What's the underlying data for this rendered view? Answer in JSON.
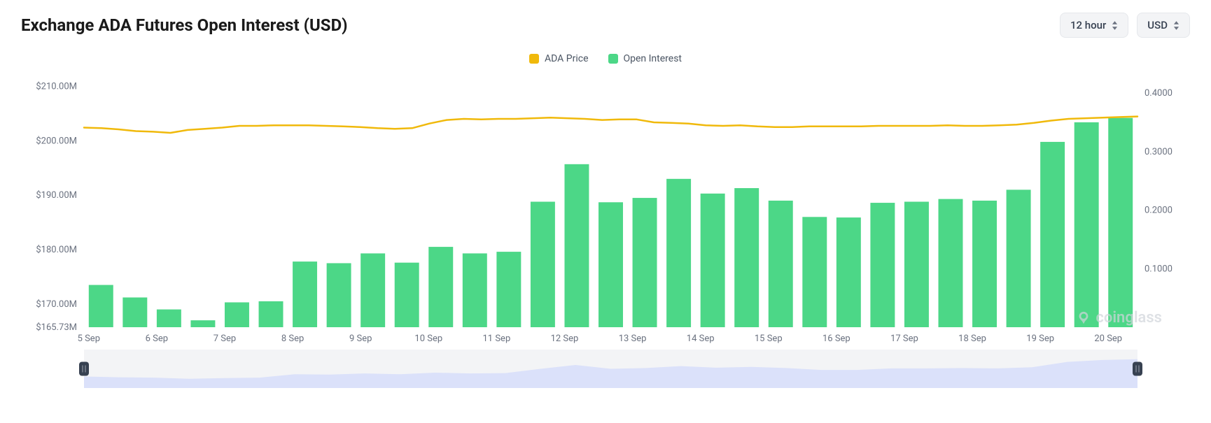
{
  "header": {
    "title": "Exchange ADA Futures Open Interest (USD)",
    "timeframe_label": "12 hour",
    "currency_label": "USD"
  },
  "legend": {
    "price_label": "ADA Price",
    "price_color": "#f0b90b",
    "oi_label": "Open Interest",
    "oi_color": "#4cd787"
  },
  "watermark": "coinglass",
  "chart": {
    "type": "bar+line",
    "background_color": "#ffffff",
    "bar_color": "#4cd787",
    "line_color": "#f0b90b",
    "line_width": 2.5,
    "bar_width_ratio": 0.72,
    "left_axis": {
      "label_fontsize": 13,
      "label_color": "#6b7280",
      "ticks": [
        {
          "value": 165.73,
          "label": "$165.73M"
        },
        {
          "value": 170.0,
          "label": "$170.00M"
        },
        {
          "value": 180.0,
          "label": "$180.00M"
        },
        {
          "value": 190.0,
          "label": "$190.00M"
        },
        {
          "value": 200.0,
          "label": "$200.00M"
        },
        {
          "value": 210.0,
          "label": "$210.00M"
        }
      ],
      "min": 165.73,
      "max": 212.0
    },
    "right_axis": {
      "label_fontsize": 13,
      "label_color": "#6b7280",
      "ticks": [
        {
          "value": 0.1,
          "label": "0.1000"
        },
        {
          "value": 0.2,
          "label": "0.2000"
        },
        {
          "value": 0.3,
          "label": "0.3000"
        },
        {
          "value": 0.4,
          "label": "0.4000"
        }
      ],
      "min": 0.0,
      "max": 0.43
    },
    "x_labels": [
      "5 Sep",
      "6 Sep",
      "7 Sep",
      "8 Sep",
      "9 Sep",
      "10 Sep",
      "11 Sep",
      "12 Sep",
      "13 Sep",
      "14 Sep",
      "15 Sep",
      "16 Sep",
      "17 Sep",
      "18 Sep",
      "19 Sep",
      "20 Sep"
    ],
    "bars_oi": [
      173.5,
      171.2,
      169.0,
      167.0,
      170.3,
      170.5,
      177.8,
      177.5,
      179.3,
      177.6,
      180.5,
      179.3,
      179.6,
      188.8,
      195.7,
      188.7,
      189.5,
      193.0,
      190.3,
      191.3,
      189.0,
      186.0,
      185.9,
      188.6,
      188.8,
      189.3,
      189.0,
      191.0,
      199.8,
      203.4,
      204.2
    ],
    "line_price": [
      0.341,
      0.34,
      0.338,
      0.335,
      0.334,
      0.332,
      0.337,
      0.339,
      0.341,
      0.344,
      0.344,
      0.345,
      0.345,
      0.345,
      0.344,
      0.343,
      0.342,
      0.34,
      0.339,
      0.34,
      0.348,
      0.354,
      0.356,
      0.355,
      0.356,
      0.356,
      0.357,
      0.358,
      0.357,
      0.356,
      0.354,
      0.355,
      0.355,
      0.35,
      0.349,
      0.348,
      0.345,
      0.344,
      0.345,
      0.343,
      0.342,
      0.342,
      0.343,
      0.343,
      0.343,
      0.343,
      0.344,
      0.344,
      0.344,
      0.344,
      0.345,
      0.344,
      0.344,
      0.345,
      0.346,
      0.349,
      0.353,
      0.356,
      0.357,
      0.358,
      0.359,
      0.36
    ]
  },
  "navigator": {
    "area_color": "#c7d2fe",
    "area_opacity": 0.55,
    "background": "#f3f4f6",
    "handle_color": "#374151",
    "values": [
      0.3,
      0.28,
      0.27,
      0.24,
      0.26,
      0.27,
      0.36,
      0.35,
      0.38,
      0.36,
      0.4,
      0.38,
      0.39,
      0.5,
      0.6,
      0.5,
      0.52,
      0.57,
      0.53,
      0.55,
      0.52,
      0.47,
      0.47,
      0.51,
      0.51,
      0.52,
      0.51,
      0.54,
      0.68,
      0.73,
      0.75
    ]
  }
}
